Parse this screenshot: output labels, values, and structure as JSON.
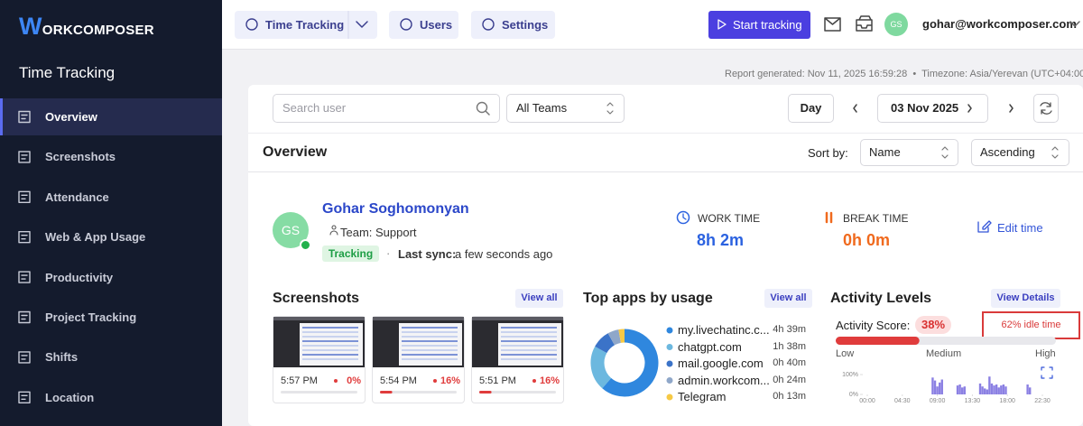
{
  "logo": "WORKCOMPOSER",
  "sidebar": {
    "title": "Time Tracking",
    "active": 0,
    "items": [
      "Overview",
      "Screenshots",
      "Attendance",
      "Web & App Usage",
      "Productivity",
      "Project Tracking",
      "Shifts",
      "Location"
    ]
  },
  "topbar": {
    "tabs": [
      "Time Tracking",
      "Users",
      "Settings"
    ],
    "start_button": "Start tracking",
    "avatar": "GS",
    "email": "gohar@workcomposer.com"
  },
  "report": {
    "generated": "Report generated: Nov 11, 2025 16:59:28",
    "timezone": "Timezone: Asia/Yerevan (UTC+04:00"
  },
  "filters": {
    "search_placeholder": "Search user",
    "team": "All Teams",
    "period": "Day",
    "date": "03 Nov 2025"
  },
  "overview": {
    "title": "Overview",
    "sort_label": "Sort by:",
    "sort_field": "Name",
    "sort_order": "Ascending"
  },
  "user": {
    "initials": "GS",
    "name": "Gohar Soghomonyan",
    "team": "Team: Support",
    "status": "Tracking",
    "last_sync_label": "Last sync:",
    "last_sync": "a few seconds ago",
    "work_time_label": "WORK TIME",
    "work_time": "8h 2m",
    "break_time_label": "BREAK TIME",
    "break_time": "0h 0m",
    "edit": "Edit time"
  },
  "screenshots": {
    "title": "Screenshots",
    "view_all": "View all",
    "items": [
      {
        "time": "5:57 PM",
        "activity": 0,
        "activity_label": "0%"
      },
      {
        "time": "5:54 PM",
        "activity": 16,
        "activity_label": "16%"
      },
      {
        "time": "5:51 PM",
        "activity": 16,
        "activity_label": "16%"
      }
    ]
  },
  "top_apps": {
    "title": "Top apps by usage",
    "view_all": "View all",
    "apps": [
      {
        "name": "my.livechatinc.c...",
        "time": "4h 39m",
        "minutes": 279,
        "color": "#2f87de"
      },
      {
        "name": "chatgpt.com",
        "time": "1h 38m",
        "minutes": 98,
        "color": "#6cb8df"
      },
      {
        "name": "mail.google.com",
        "time": "0h 40m",
        "minutes": 40,
        "color": "#3b73c8"
      },
      {
        "name": "admin.workcom...",
        "time": "0h 24m",
        "minutes": 24,
        "color": "#8fa7c9"
      },
      {
        "name": "Telegram",
        "time": "0h 13m",
        "minutes": 13,
        "color": "#f6c945"
      }
    ]
  },
  "activity": {
    "title": "Activity Levels",
    "details": "View Details",
    "score_label": "Activity Score:",
    "score": 38,
    "score_label_value": "38%",
    "idle": "62% idle time",
    "levels": [
      "Low",
      "Medium",
      "High"
    ],
    "chart": {
      "type": "bar",
      "color": "#8b80e3",
      "xlim": [
        0,
        24
      ],
      "ylim": [
        0,
        100
      ],
      "xticks": [
        {
          "value": 0,
          "label": "00:00"
        },
        {
          "value": 4.5,
          "label": "04:30"
        },
        {
          "value": 9,
          "label": "09:00"
        },
        {
          "value": 13.5,
          "label": "13:30"
        },
        {
          "value": 18,
          "label": "18:00"
        },
        {
          "value": 22.5,
          "label": "22:30"
        }
      ],
      "yticks": [
        {
          "value": 100,
          "label": "100%"
        },
        {
          "value": 0,
          "label": "0%"
        }
      ],
      "x": [
        8.4,
        8.7,
        9.0,
        9.3,
        9.6,
        11.6,
        11.9,
        12.2,
        12.5,
        14.5,
        14.8,
        15.1,
        15.4,
        15.7,
        16.0,
        16.3,
        16.6,
        16.9,
        17.2,
        17.5,
        17.8,
        20.6,
        20.9
      ],
      "values": [
        85,
        70,
        40,
        60,
        75,
        45,
        50,
        35,
        40,
        55,
        40,
        30,
        25,
        90,
        55,
        45,
        50,
        35,
        45,
        50,
        40,
        50,
        35
      ]
    }
  }
}
